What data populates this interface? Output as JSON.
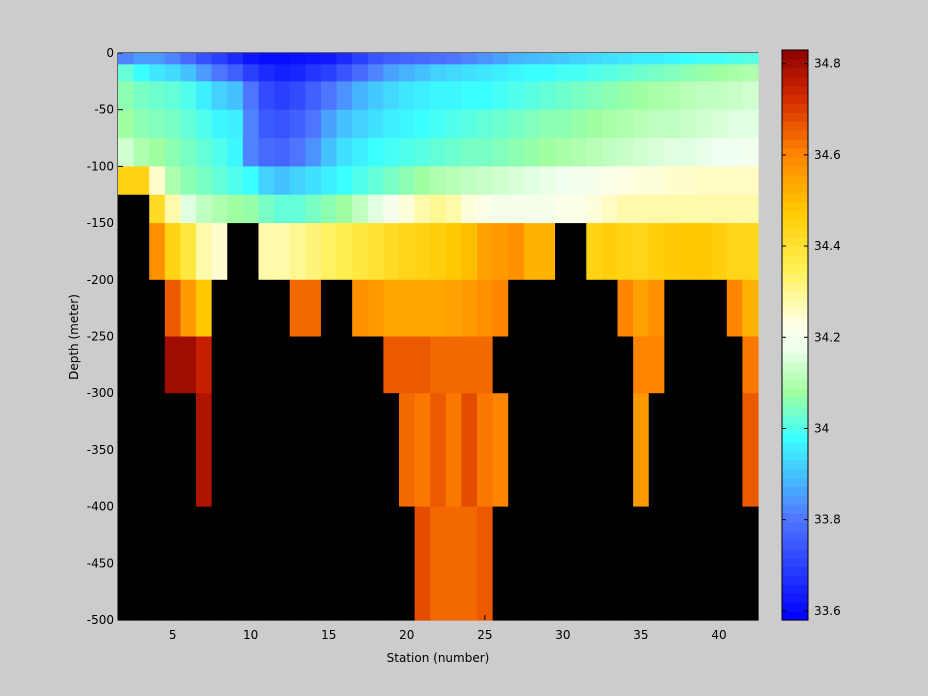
{
  "chart_data": {
    "type": "heatmap",
    "xlabel": "Station (number)",
    "ylabel": "Depth (meter)",
    "x_range": [
      1.5,
      42.5
    ],
    "y_range": [
      -500,
      0
    ],
    "x_ticks": [
      5,
      10,
      15,
      20,
      25,
      30,
      35,
      40
    ],
    "y_ticks": [
      0,
      -50,
      -100,
      -150,
      -200,
      -250,
      -300,
      -350,
      -400,
      -450,
      -500
    ],
    "colorbar": {
      "range": [
        33.58,
        34.83
      ],
      "ticks": [
        34.8,
        34.6,
        34.4,
        34.2,
        34,
        33.8,
        33.6
      ],
      "colormap": "jet-with-white-center"
    },
    "missing_color": "#000000",
    "stations": [
      2,
      3,
      4,
      5,
      6,
      7,
      8,
      9,
      10,
      11,
      12,
      13,
      14,
      15,
      16,
      17,
      18,
      19,
      20,
      21,
      22,
      23,
      24,
      25,
      26,
      27,
      28,
      29,
      30,
      31,
      32,
      33,
      34,
      35,
      36,
      37,
      38,
      39,
      40,
      41,
      42
    ],
    "depth_bins": [
      {
        "top": 0,
        "bottom": -10
      },
      {
        "top": -10,
        "bottom": -25
      },
      {
        "top": -25,
        "bottom": -50
      },
      {
        "top": -50,
        "bottom": -75
      },
      {
        "top": -75,
        "bottom": -100
      },
      {
        "top": -100,
        "bottom": -125
      },
      {
        "top": -125,
        "bottom": -150
      },
      {
        "top": -150,
        "bottom": -200
      },
      {
        "top": -200,
        "bottom": -250
      },
      {
        "top": -250,
        "bottom": -300
      },
      {
        "top": -300,
        "bottom": -400
      },
      {
        "top": -400,
        "bottom": -500
      }
    ],
    "salinity": [
      [
        33.82,
        33.85,
        33.85,
        33.82,
        33.78,
        33.73,
        33.7,
        33.66,
        33.62,
        33.6,
        33.6,
        33.61,
        33.62,
        33.63,
        33.66,
        33.7,
        33.74,
        33.76,
        33.77,
        33.78,
        33.79,
        33.8,
        33.82,
        33.84,
        33.86,
        33.88,
        33.89,
        33.9,
        33.91,
        33.92,
        33.93,
        33.94,
        33.95,
        33.96,
        33.96,
        33.97,
        33.98,
        33.99,
        33.99,
        34.0,
        34.01
      ],
      [
        34.02,
        33.98,
        33.95,
        33.93,
        33.9,
        33.85,
        33.8,
        33.76,
        33.7,
        33.66,
        33.64,
        33.65,
        33.68,
        33.7,
        33.74,
        33.78,
        33.82,
        33.86,
        33.88,
        33.9,
        33.92,
        33.93,
        33.94,
        33.95,
        33.96,
        33.97,
        33.98,
        33.98,
        33.99,
        33.99,
        34.0,
        34.01,
        34.02,
        34.03,
        34.04,
        34.05,
        34.06,
        34.07,
        34.08,
        34.09,
        34.1
      ],
      [
        34.06,
        34.04,
        34.03,
        34.02,
        34.0,
        33.96,
        33.92,
        33.9,
        33.8,
        33.72,
        33.7,
        33.72,
        33.76,
        33.8,
        33.84,
        33.88,
        33.91,
        33.93,
        33.95,
        33.96,
        33.97,
        33.97,
        33.98,
        33.98,
        33.99,
        34.0,
        34.01,
        34.02,
        34.03,
        34.04,
        34.05,
        34.06,
        34.07,
        34.08,
        34.09,
        34.1,
        34.11,
        34.12,
        34.12,
        34.13,
        34.14
      ],
      [
        34.08,
        34.06,
        34.05,
        34.04,
        34.02,
        34.0,
        33.97,
        33.96,
        33.82,
        33.75,
        33.74,
        33.76,
        33.8,
        33.86,
        33.9,
        33.92,
        33.94,
        33.96,
        33.97,
        33.98,
        33.99,
        34.0,
        34.01,
        34.02,
        34.03,
        34.04,
        34.05,
        34.06,
        34.06,
        34.07,
        34.08,
        34.09,
        34.1,
        34.11,
        34.12,
        34.12,
        34.13,
        34.14,
        34.15,
        34.16,
        34.16
      ],
      [
        34.14,
        34.1,
        34.08,
        34.06,
        34.04,
        34.02,
        34.0,
        33.97,
        33.82,
        33.78,
        33.77,
        33.8,
        33.84,
        33.9,
        33.94,
        33.96,
        33.98,
        33.99,
        34.0,
        34.01,
        34.02,
        34.03,
        34.04,
        34.04,
        34.05,
        34.06,
        34.07,
        34.08,
        34.09,
        34.1,
        34.11,
        34.12,
        34.13,
        34.14,
        34.15,
        34.16,
        34.16,
        34.17,
        34.18,
        34.18,
        34.19
      ],
      [
        34.45,
        34.45,
        34.25,
        34.1,
        34.06,
        34.04,
        34.02,
        34.0,
        33.98,
        33.92,
        33.9,
        33.92,
        33.94,
        33.96,
        33.98,
        34.0,
        34.02,
        34.04,
        34.06,
        34.08,
        34.1,
        34.11,
        34.12,
        34.13,
        34.14,
        34.15,
        34.16,
        34.17,
        34.18,
        34.19,
        34.2,
        34.22,
        34.23,
        34.24,
        34.24,
        34.25,
        34.25,
        34.26,
        34.26,
        34.26,
        34.26
      ],
      [
        null,
        null,
        34.42,
        34.28,
        34.16,
        34.12,
        34.1,
        34.08,
        34.07,
        34.04,
        34.02,
        34.02,
        34.04,
        34.06,
        34.08,
        34.12,
        34.16,
        34.2,
        34.24,
        34.28,
        34.3,
        34.28,
        34.24,
        34.22,
        34.2,
        34.2,
        34.2,
        34.2,
        34.22,
        34.22,
        34.24,
        34.26,
        34.28,
        34.28,
        34.28,
        34.28,
        34.28,
        34.28,
        34.28,
        34.28,
        34.28
      ],
      [
        null,
        null,
        34.58,
        34.45,
        34.38,
        34.28,
        34.25,
        null,
        null,
        34.28,
        34.28,
        34.3,
        34.32,
        34.34,
        34.36,
        34.38,
        34.4,
        34.42,
        34.44,
        34.45,
        34.46,
        34.48,
        34.5,
        34.55,
        34.56,
        34.58,
        34.52,
        34.52,
        null,
        null,
        34.45,
        34.46,
        34.45,
        34.44,
        34.46,
        34.47,
        34.48,
        34.48,
        34.46,
        34.44,
        34.44
      ],
      [
        null,
        null,
        null,
        34.66,
        34.56,
        34.48,
        null,
        null,
        null,
        null,
        null,
        34.64,
        34.64,
        null,
        null,
        34.58,
        34.56,
        34.54,
        34.54,
        34.54,
        34.54,
        34.55,
        34.56,
        34.58,
        34.6,
        null,
        null,
        null,
        null,
        null,
        null,
        null,
        34.6,
        34.55,
        34.58,
        null,
        null,
        null,
        null,
        34.6,
        34.52
      ],
      [
        null,
        null,
        null,
        34.8,
        34.8,
        34.75,
        null,
        null,
        null,
        null,
        null,
        null,
        null,
        null,
        null,
        null,
        null,
        34.66,
        34.66,
        34.66,
        34.64,
        34.64,
        34.64,
        34.64,
        null,
        null,
        null,
        null,
        null,
        null,
        null,
        null,
        null,
        34.6,
        34.6,
        null,
        null,
        null,
        null,
        null,
        34.62
      ],
      [
        null,
        null,
        null,
        null,
        null,
        34.78,
        null,
        null,
        null,
        null,
        null,
        null,
        null,
        null,
        null,
        null,
        null,
        null,
        34.64,
        34.62,
        34.66,
        34.62,
        34.68,
        34.62,
        34.6,
        null,
        null,
        null,
        null,
        null,
        null,
        null,
        null,
        34.56,
        null,
        null,
        null,
        null,
        null,
        null,
        34.66
      ],
      [
        null,
        null,
        null,
        null,
        null,
        null,
        null,
        null,
        null,
        null,
        null,
        null,
        null,
        null,
        null,
        null,
        null,
        null,
        null,
        34.68,
        34.64,
        34.64,
        34.64,
        34.66,
        null,
        null,
        null,
        null,
        null,
        null,
        null,
        null,
        null,
        null,
        null,
        null,
        null,
        null,
        null,
        null,
        null
      ]
    ]
  }
}
